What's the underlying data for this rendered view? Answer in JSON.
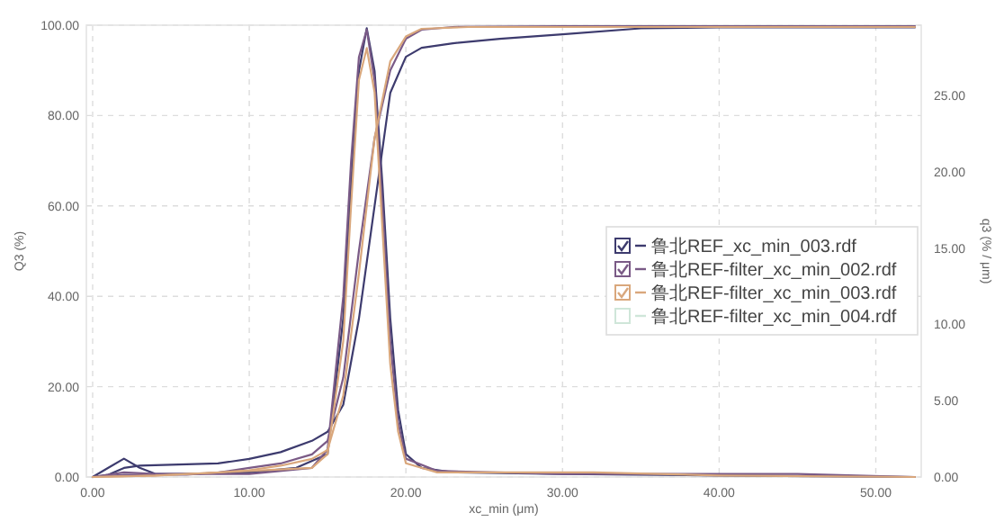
{
  "chart_data": {
    "type": "line",
    "xlabel": "xc_min (μm)",
    "ylabel": "Q3 (%)",
    "y2label": "q3 (% / μm)",
    "xlim": [
      -0.4,
      52.9
    ],
    "ylim": [
      0,
      100
    ],
    "y2lim": [
      0,
      29.6
    ],
    "xticks": [
      {
        "value": 0,
        "label": "0.00"
      },
      {
        "value": 10,
        "label": "10.00"
      },
      {
        "value": 20,
        "label": "20.00"
      },
      {
        "value": 30,
        "label": "30.00"
      },
      {
        "value": 40,
        "label": "40.00"
      },
      {
        "value": 50,
        "label": "50.00"
      }
    ],
    "yticks": [
      {
        "value": 0,
        "label": "0.00"
      },
      {
        "value": 20,
        "label": "20.00"
      },
      {
        "value": 40,
        "label": "40.00"
      },
      {
        "value": 60,
        "label": "60.00"
      },
      {
        "value": 80,
        "label": "80.00"
      },
      {
        "value": 100,
        "label": "100.00"
      }
    ],
    "y2ticks": [
      {
        "value": 0,
        "label": "0.00"
      },
      {
        "value": 5,
        "label": "5.00"
      },
      {
        "value": 10,
        "label": "10.00"
      },
      {
        "value": 15,
        "label": "15.00"
      },
      {
        "value": 20,
        "label": "20.00"
      },
      {
        "value": 25,
        "label": "25.00"
      }
    ],
    "grid": true,
    "legend": "right",
    "line_style": "solid",
    "marker": "none",
    "series": [
      {
        "name": "鲁北REF_xc_min_003.rdf",
        "color": "#3d3b6e",
        "x": [
          0,
          1,
          2,
          3,
          5,
          8,
          10,
          12,
          14,
          15,
          16,
          17,
          18,
          19,
          20,
          21,
          23,
          26,
          30,
          35,
          40,
          52.5
        ],
        "values": [
          0,
          0.5,
          2,
          2.5,
          2.7,
          3,
          4,
          5.5,
          8,
          10,
          16,
          35,
          60,
          85,
          93,
          95,
          96,
          97,
          98,
          99.3,
          99.5,
          99.5
        ]
      },
      {
        "color": "#3d3b6e",
        "axis": "y2",
        "x": [
          0,
          1,
          2,
          3,
          4,
          6,
          10,
          13,
          15,
          16,
          16.5,
          17,
          17.5,
          18,
          18.5,
          19,
          19.5,
          20,
          21,
          23,
          30,
          40,
          52.5
        ],
        "values": [
          0,
          0.6,
          1.2,
          0.6,
          0.2,
          0.2,
          0.3,
          0.6,
          1.5,
          10.4,
          19.2,
          26.6,
          29.4,
          26.6,
          19.2,
          10.4,
          4.4,
          1.5,
          0.6,
          0.3,
          0.2,
          0.1,
          0
        ]
      },
      {
        "name": "鲁北REF-filter_xc_min_002.rdf",
        "color": "#7a5a86",
        "x": [
          0,
          2,
          4,
          6,
          8,
          10,
          12,
          14,
          15,
          16,
          17,
          18,
          19,
          20,
          21,
          23,
          30,
          52.5
        ],
        "values": [
          0,
          0.5,
          0.5,
          0.5,
          1,
          2,
          3,
          5,
          8,
          22,
          50,
          75,
          90,
          97,
          99,
          99.6,
          99.8,
          99.8
        ]
      },
      {
        "color": "#7a5a86",
        "axis": "y2",
        "x": [
          0,
          2,
          4,
          10,
          14,
          15,
          16,
          16.5,
          17,
          17.5,
          18,
          18.5,
          19,
          19.5,
          20,
          22,
          30,
          45,
          52.5
        ],
        "values": [
          0,
          0.3,
          0.2,
          0.2,
          0.6,
          1.8,
          11.8,
          20.7,
          27.5,
          29.3,
          26,
          17.8,
          8.9,
          3.6,
          1.2,
          0.4,
          0.2,
          0.2,
          0
        ]
      },
      {
        "name": "鲁北REF-filter_xc_min_003.rdf",
        "color": "#d9a77c",
        "x": [
          0,
          4,
          8,
          10,
          12,
          14,
          15,
          16,
          17,
          18,
          19,
          20,
          21,
          24,
          52.5
        ],
        "values": [
          0,
          0.3,
          1,
          1.5,
          2.5,
          4,
          6,
          18,
          45,
          75,
          92,
          97.5,
          99.2,
          99.6,
          99.6
        ]
      },
      {
        "color": "#d9a77c",
        "axis": "y2",
        "x": [
          0,
          4,
          14,
          15,
          16,
          16.5,
          17,
          17.5,
          18,
          18.5,
          19,
          19.5,
          20,
          22,
          32,
          40,
          52.5
        ],
        "values": [
          0,
          0.1,
          0.6,
          1.5,
          8.9,
          17.8,
          26,
          28.1,
          25.2,
          16.3,
          7.4,
          3,
          0.9,
          0.3,
          0.3,
          0.1,
          0
        ]
      },
      {
        "name": "鲁北REF-filter_xc_min_004.rdf",
        "color": "#cfe6d9"
      }
    ]
  }
}
